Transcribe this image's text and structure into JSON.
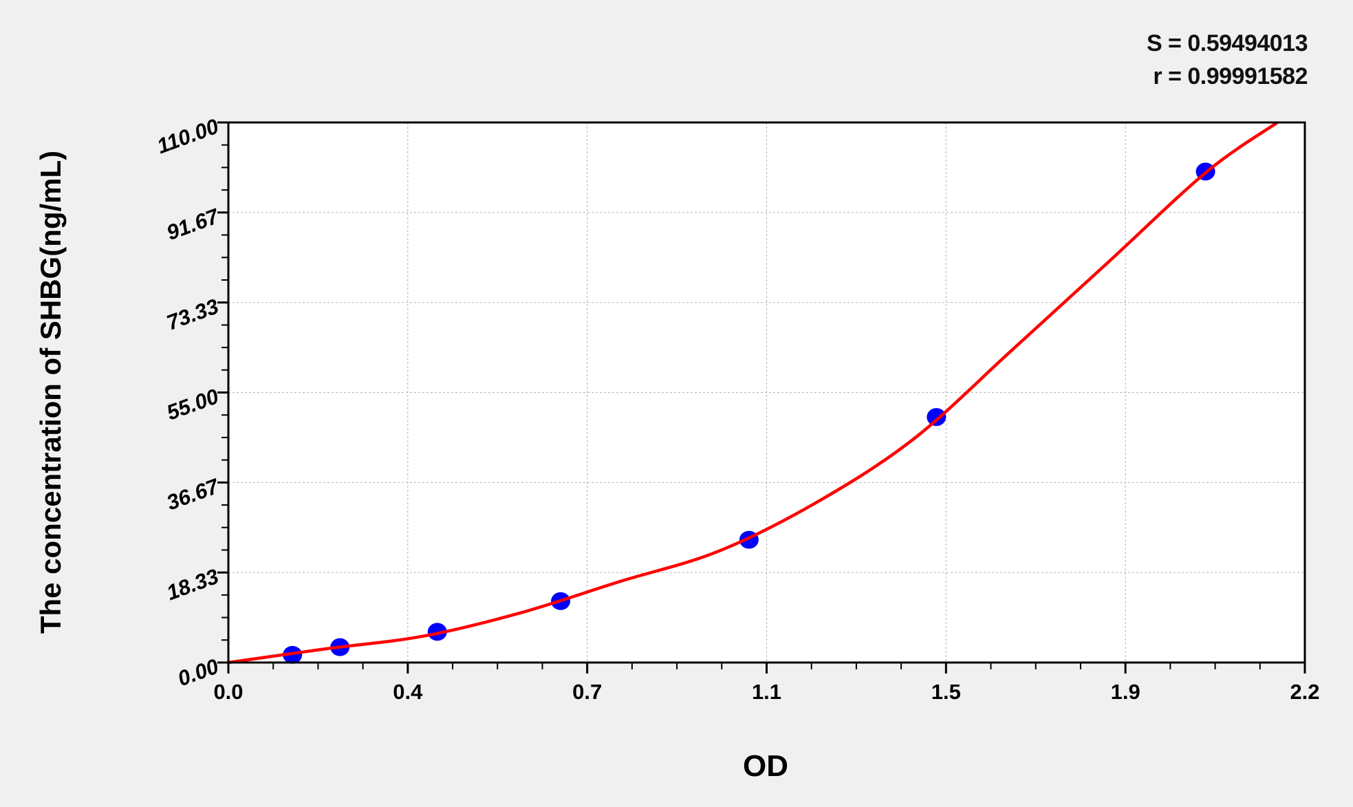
{
  "stats": {
    "s_label": "S = 0.59494013",
    "r_label": "r = 0.99991582"
  },
  "chart_data": {
    "type": "scatter",
    "title": "",
    "xlabel": "OD",
    "ylabel": "The concentration of SHBG(ng/mL)",
    "xlim": [
      0,
      2.2
    ],
    "ylim": [
      0,
      110
    ],
    "x_ticks": [
      "0.0",
      "0.4",
      "0.7",
      "1.1",
      "1.5",
      "1.9",
      "2.2"
    ],
    "y_ticks": [
      "0.00",
      "18.33",
      "36.67",
      "55.00",
      "73.33",
      "91.67",
      "110.00"
    ],
    "grid": true,
    "series": [
      {
        "kind": "points",
        "color": "#0000ff",
        "x": [
          0.131,
          0.228,
          0.427,
          0.679,
          1.064,
          1.447,
          1.997
        ],
        "y": [
          1.56,
          3.13,
          6.25,
          12.5,
          25,
          50,
          100
        ]
      },
      {
        "kind": "fitted-curve",
        "color": "#ff0000",
        "x": [
          0,
          0.2,
          0.4,
          0.6,
          0.8,
          1.0,
          1.2,
          1.4,
          1.6,
          1.8,
          2.0,
          2.144
        ],
        "y": [
          0,
          2.8,
          5.4,
          10.2,
          16.5,
          22.6,
          32.5,
          45.5,
          63.5,
          81.7,
          100,
          110
        ]
      }
    ]
  }
}
